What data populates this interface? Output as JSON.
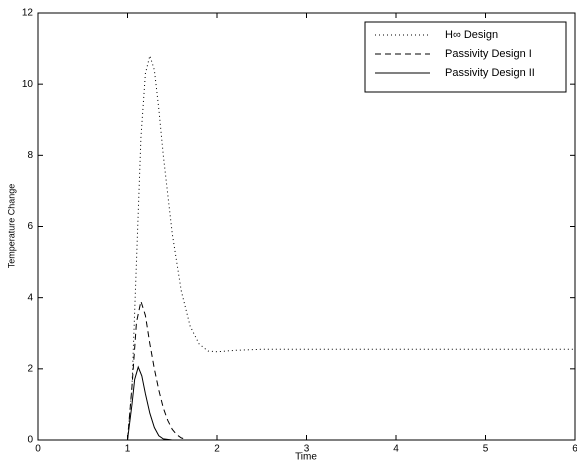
{
  "chart_data": {
    "type": "line",
    "x_label": "Time",
    "y_label": "Temperature Change",
    "xlim": [
      0,
      6
    ],
    "ylim": [
      0,
      12
    ],
    "xticks": [
      0,
      1,
      2,
      3,
      4,
      5,
      6
    ],
    "yticks": [
      0,
      2,
      4,
      6,
      8,
      10,
      12
    ],
    "legend": "upper right",
    "series": [
      {
        "name": "H∞ Design",
        "color": "#000000",
        "dash": "dotted",
        "x": [
          0,
          1.0,
          1.05,
          1.1,
          1.15,
          1.2,
          1.25,
          1.3,
          1.35,
          1.4,
          1.5,
          1.6,
          1.7,
          1.8,
          1.9,
          2.0,
          2.2,
          2.5,
          3,
          4,
          5,
          6
        ],
        "values": [
          0,
          0,
          1.5,
          5,
          8.5,
          10.3,
          10.8,
          10.4,
          9.3,
          8,
          5.8,
          4.2,
          3.2,
          2.7,
          2.5,
          2.48,
          2.52,
          2.55,
          2.55,
          2.55,
          2.55,
          2.55
        ]
      },
      {
        "name": "Passivity Design I",
        "color": "#000000",
        "dash": "dashed",
        "x": [
          0,
          1.0,
          1.05,
          1.1,
          1.15,
          1.2,
          1.25,
          1.3,
          1.35,
          1.4,
          1.45,
          1.5,
          1.55,
          1.6,
          1.65
        ],
        "values": [
          0,
          0,
          1.5,
          3.3,
          3.9,
          3.5,
          2.7,
          2.0,
          1.4,
          0.9,
          0.55,
          0.3,
          0.15,
          0.06,
          0.02
        ]
      },
      {
        "name": "Passivity Design II",
        "color": "#000000",
        "dash": "solid",
        "x": [
          0,
          1.0,
          1.05,
          1.08,
          1.12,
          1.16,
          1.2,
          1.25,
          1.3,
          1.35,
          1.4,
          1.5
        ],
        "values": [
          0,
          0,
          1.0,
          1.7,
          2.05,
          1.8,
          1.3,
          0.75,
          0.35,
          0.12,
          0.03,
          0
        ]
      }
    ]
  }
}
